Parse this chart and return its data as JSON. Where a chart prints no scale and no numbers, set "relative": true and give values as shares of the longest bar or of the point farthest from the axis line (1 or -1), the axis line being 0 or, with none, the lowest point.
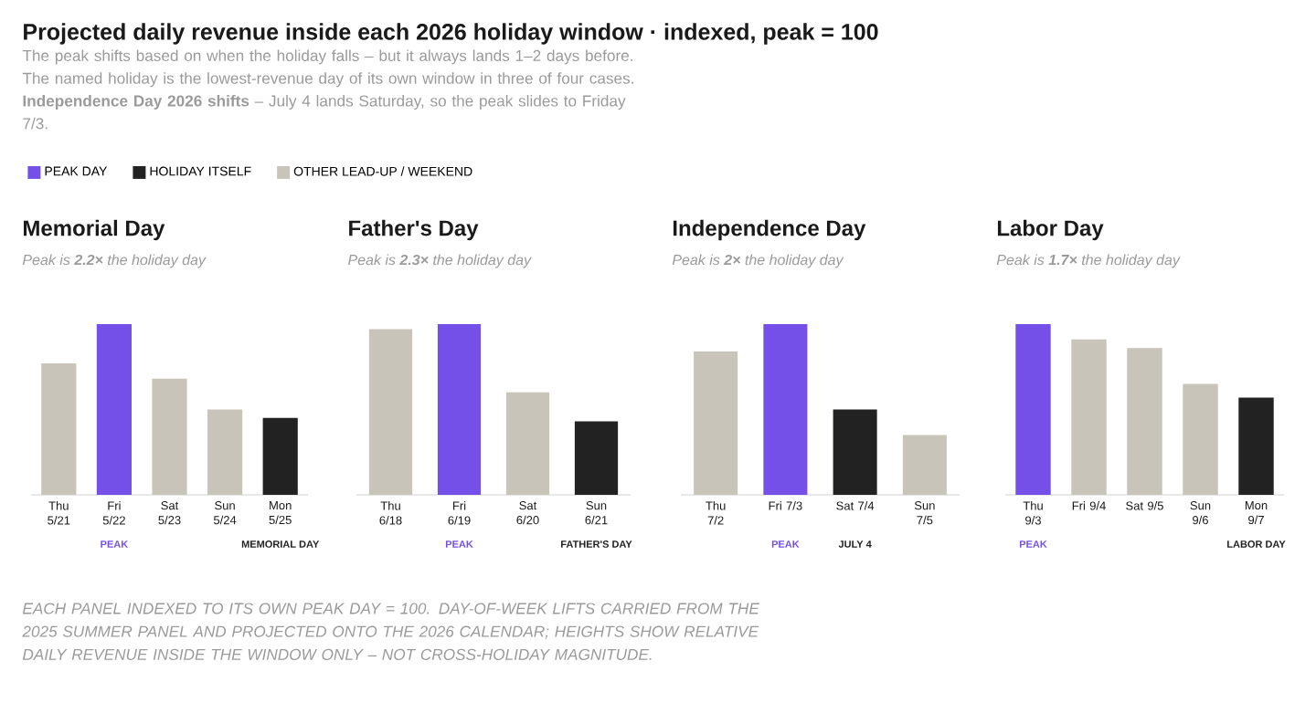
{
  "chart_data": [
    {
      "type": "other",
      "title": "Projected daily revenue inside each 2026 holiday window · indexed, peak = 100",
      "subtitle": "The peak shifts based on when the holiday falls – but it always lands 1–2 days before. The named holiday is the lowest-revenue day of its own window in three of four cases. **Independence Day 2026 shifts** – July 4 lands Saturday, so the peak slides to Friday 7/3.",
      "annotations": [
        "EACH PANEL INDEXED TO ITS OWN PEAK DAY = 100. DAY-OF-WEEK LIFTS CARRIED FROM THE 2025 SUMMER PANEL AND PROJECTED ONTO THE 2026 CALENDAR; HEIGHTS SHOW RELATIVE DAILY REVENUE INSIDE THE WINDOW ONLY – NOT CROSS-HOLIDAY MAGNITUDE."
      ]
    },
    {
      "type": "bar",
      "title": "Memorial Day",
      "subtitle": "Peak is **2.2×** the holiday day",
      "relative": true,
      "legend": "top right",
      "categories": [
        "Thu 5/21",
        "Fri 5/22",
        "Sat 5/23",
        "Sun 5/24",
        "Mon 5/25"
      ],
      "series": [
        {
          "name": "PEAK DAY",
          "color": "#7450e8",
          "values": [
            null,
            1,
            null,
            null,
            null
          ]
        },
        {
          "name": "HOLIDAY ITSELF",
          "color": "#222222",
          "values": [
            null,
            null,
            null,
            null,
            0.45
          ]
        },
        {
          "name": "OTHER LEAD-UP / WEEKEND",
          "color": "#c8c4b9",
          "values": [
            0.77,
            null,
            0.68,
            0.5,
            null
          ]
        }
      ],
      "annotations": [
        "PEAK",
        "MEMORIAL DAY"
      ]
    },
    {
      "type": "bar",
      "title": "Father's Day",
      "subtitle": "Peak is **2.3×** the holiday day",
      "relative": true,
      "categories": [
        "Thu 6/18",
        "Fri 6/19",
        "Sat 6/20",
        "Sun 6/21"
      ],
      "series": [
        {
          "color": "#7450e8",
          "values": [
            null,
            1,
            null,
            null
          ]
        },
        {
          "color": "#222222",
          "values": [
            null,
            null,
            null,
            0.43
          ]
        },
        {
          "color": "#c8c4b9",
          "values": [
            0.97,
            null,
            0.6,
            null
          ]
        }
      ],
      "annotations": [
        "PEAK",
        "FATHER'S DAY"
      ]
    },
    {
      "type": "bar",
      "title": "Independence Day",
      "subtitle": "Peak is **2×** the holiday day",
      "relative": true,
      "categories": [
        "Thu 7/2",
        "Fri 7/3",
        "Sat 7/4",
        "Sun 7/5"
      ],
      "series": [
        {
          "color": "#7450e8",
          "values": [
            null,
            1,
            null,
            null
          ]
        },
        {
          "color": "#222222",
          "values": [
            null,
            null,
            0.5,
            null
          ]
        },
        {
          "color": "#c8c4b9",
          "values": [
            0.84,
            null,
            null,
            0.35
          ]
        }
      ],
      "annotations": [
        "PEAK",
        "JULY 4"
      ]
    },
    {
      "type": "bar",
      "title": "Labor Day",
      "subtitle": "Peak is **1.7×** the holiday day",
      "relative": true,
      "categories": [
        "Thu 9/3",
        "Fri 9/4",
        "Sat 9/5",
        "Sun 9/6",
        "Mon 9/7"
      ],
      "series": [
        {
          "color": "#7450e8",
          "values": [
            1,
            null,
            null,
            null,
            null
          ]
        },
        {
          "color": "#222222",
          "values": [
            null,
            null,
            null,
            null,
            0.57
          ]
        },
        {
          "color": "#c8c4b9",
          "values": [
            null,
            0.91,
            0.86,
            0.65,
            null
          ]
        }
      ],
      "annotations": [
        "PEAK",
        "LABOR DAY"
      ]
    }
  ]
}
